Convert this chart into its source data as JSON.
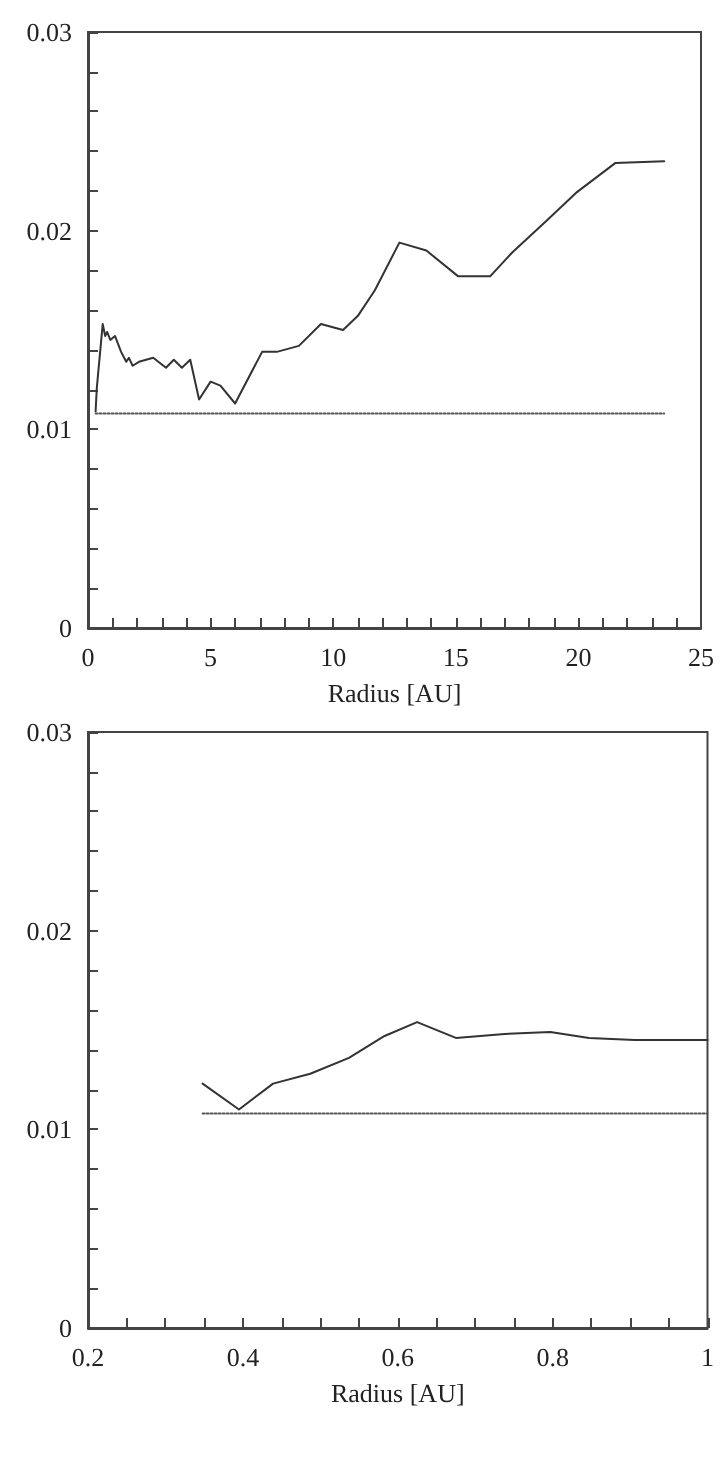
{
  "chart_data": [
    {
      "type": "line",
      "xlabel": "Radius [AU]",
      "xlim": [
        0,
        25
      ],
      "ylim": [
        0,
        0.03
      ],
      "grid": false,
      "marker": "none",
      "xticks": [
        0,
        {
          "value": 1,
          "label": null
        },
        {
          "value": 2,
          "label": null
        },
        {
          "value": 3,
          "label": null
        },
        {
          "value": 4,
          "label": null
        },
        5,
        {
          "value": 6,
          "label": null
        },
        {
          "value": 7,
          "label": null
        },
        {
          "value": 8,
          "label": null
        },
        {
          "value": 9,
          "label": null
        },
        10,
        {
          "value": 11,
          "label": null
        },
        {
          "value": 12,
          "label": null
        },
        {
          "value": 13,
          "label": null
        },
        {
          "value": 14,
          "label": null
        },
        15,
        {
          "value": 16,
          "label": null
        },
        {
          "value": 17,
          "label": null
        },
        {
          "value": 18,
          "label": null
        },
        {
          "value": 19,
          "label": null
        },
        20,
        {
          "value": 21,
          "label": null
        },
        {
          "value": 22,
          "label": null
        },
        {
          "value": 23,
          "label": null
        },
        {
          "value": 24,
          "label": null
        },
        25
      ],
      "yticks": [
        0,
        {
          "value": 0.002,
          "label": null
        },
        {
          "value": 0.004,
          "label": null
        },
        {
          "value": 0.006,
          "label": null
        },
        {
          "value": 0.008,
          "label": null
        },
        0.01,
        {
          "value": 0.012,
          "label": null
        },
        {
          "value": 0.014,
          "label": null
        },
        {
          "value": 0.016,
          "label": null
        },
        {
          "value": 0.018,
          "label": null
        },
        0.02,
        {
          "value": 0.022,
          "label": null
        },
        {
          "value": 0.024,
          "label": null
        },
        {
          "value": 0.026,
          "label": null
        },
        {
          "value": 0.028,
          "label": null
        },
        0.03
      ],
      "series": [
        {
          "color": "#333333",
          "line_style": "solid",
          "x": [
            0.31,
            0.36,
            0.6,
            0.7,
            0.78,
            0.91,
            1.1,
            1.35,
            1.56,
            1.67,
            1.82,
            2.08,
            2.66,
            3.18,
            3.5,
            3.83,
            4.17,
            4.53,
            5.0,
            5.4,
            6.0,
            7.1,
            7.7,
            8.6,
            9.5,
            10.4,
            11.0,
            11.7,
            12.7,
            13.8,
            15.1,
            16.4,
            17.3,
            18.7,
            19.9,
            21.5,
            23.5
          ],
          "values": [
            0.0109,
            0.0121,
            0.0153,
            0.0147,
            0.0149,
            0.0145,
            0.0147,
            0.0139,
            0.0134,
            0.0136,
            0.0132,
            0.0134,
            0.0136,
            0.0131,
            0.0135,
            0.0131,
            0.0135,
            0.0115,
            0.0124,
            0.0122,
            0.0113,
            0.0139,
            0.0139,
            0.0142,
            0.0153,
            0.015,
            0.0157,
            0.017,
            0.0194,
            0.019,
            0.0177,
            0.0177,
            0.0189,
            0.0205,
            0.0219,
            0.0234,
            0.0235
          ]
        },
        {
          "color": "#555555",
          "line_style": "dotted",
          "x": [
            0.31,
            23.5
          ],
          "values": [
            0.0108,
            0.0108
          ]
        }
      ]
    },
    {
      "type": "line",
      "xlabel": "Radius [AU]",
      "xlim": [
        0.2,
        1
      ],
      "ylim": [
        0,
        0.03
      ],
      "grid": false,
      "marker": "none",
      "xticks": [
        0.2,
        {
          "value": 0.25,
          "label": null
        },
        {
          "value": 0.3,
          "label": null
        },
        {
          "value": 0.35,
          "label": null
        },
        0.4,
        {
          "value": 0.45,
          "label": null
        },
        {
          "value": 0.5,
          "label": null
        },
        {
          "value": 0.55,
          "label": null
        },
        0.6,
        {
          "value": 0.65,
          "label": null
        },
        {
          "value": 0.7,
          "label": null
        },
        {
          "value": 0.75,
          "label": null
        },
        0.8,
        {
          "value": 0.85,
          "label": null
        },
        {
          "value": 0.9,
          "label": null
        },
        {
          "value": 0.95,
          "label": null
        },
        1
      ],
      "yticks": [
        0,
        {
          "value": 0.002,
          "label": null
        },
        {
          "value": 0.004,
          "label": null
        },
        {
          "value": 0.006,
          "label": null
        },
        {
          "value": 0.008,
          "label": null
        },
        0.01,
        {
          "value": 0.012,
          "label": null
        },
        {
          "value": 0.014,
          "label": null
        },
        {
          "value": 0.016,
          "label": null
        },
        {
          "value": 0.018,
          "label": null
        },
        0.02,
        {
          "value": 0.022,
          "label": null
        },
        {
          "value": 0.024,
          "label": null
        },
        {
          "value": 0.026,
          "label": null
        },
        {
          "value": 0.028,
          "label": null
        },
        0.03
      ],
      "series": [
        {
          "color": "#333333",
          "line_style": "solid",
          "x": [
            0.348,
            0.395,
            0.439,
            0.487,
            0.537,
            0.583,
            0.625,
            0.675,
            0.738,
            0.797,
            0.847,
            0.906,
            1.0
          ],
          "values": [
            0.0123,
            0.011,
            0.0123,
            0.0128,
            0.0136,
            0.0147,
            0.0154,
            0.0146,
            0.0148,
            0.0149,
            0.0146,
            0.0145,
            0.0145
          ]
        },
        {
          "color": "#555555",
          "line_style": "dotted",
          "x": [
            0.348,
            1.0
          ],
          "values": [
            0.0108,
            0.0108
          ]
        }
      ]
    }
  ]
}
